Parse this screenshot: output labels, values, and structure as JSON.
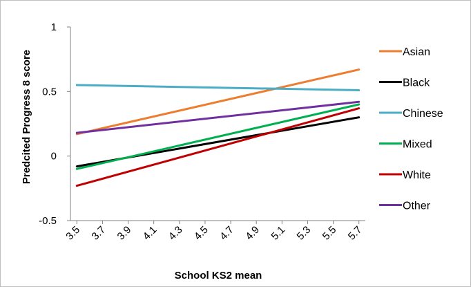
{
  "chart_data": {
    "type": "line",
    "title": "",
    "xlabel": "School KS2 mean",
    "ylabel": "Predcited Progress 8 score",
    "x": [
      3.5,
      5.7
    ],
    "x_ticks": [
      "3.5",
      "3.7",
      "3.9",
      "4.1",
      "4.3",
      "4.5",
      "4.7",
      "4.9",
      "5.1",
      "5.3",
      "5.5",
      "5.7"
    ],
    "y_ticks": [
      "1",
      "0.5",
      "0",
      "-0.5"
    ],
    "xlim": [
      3.45,
      5.75
    ],
    "ylim": [
      -0.5,
      1
    ],
    "grid": false,
    "legend_position": "right",
    "series": [
      {
        "name": "Asian",
        "color": "#ED7D31",
        "values": [
          0.17,
          0.67
        ]
      },
      {
        "name": "Black",
        "color": "#000000",
        "values": [
          -0.08,
          0.3
        ]
      },
      {
        "name": "Chinese",
        "color": "#4BACC6",
        "values": [
          0.55,
          0.51
        ]
      },
      {
        "name": "Mixed",
        "color": "#00B050",
        "values": [
          -0.1,
          0.4
        ]
      },
      {
        "name": "White",
        "color": "#C00000",
        "values": [
          -0.23,
          0.37
        ]
      },
      {
        "name": "Other",
        "color": "#7030A0",
        "values": [
          0.18,
          0.42
        ]
      }
    ]
  }
}
